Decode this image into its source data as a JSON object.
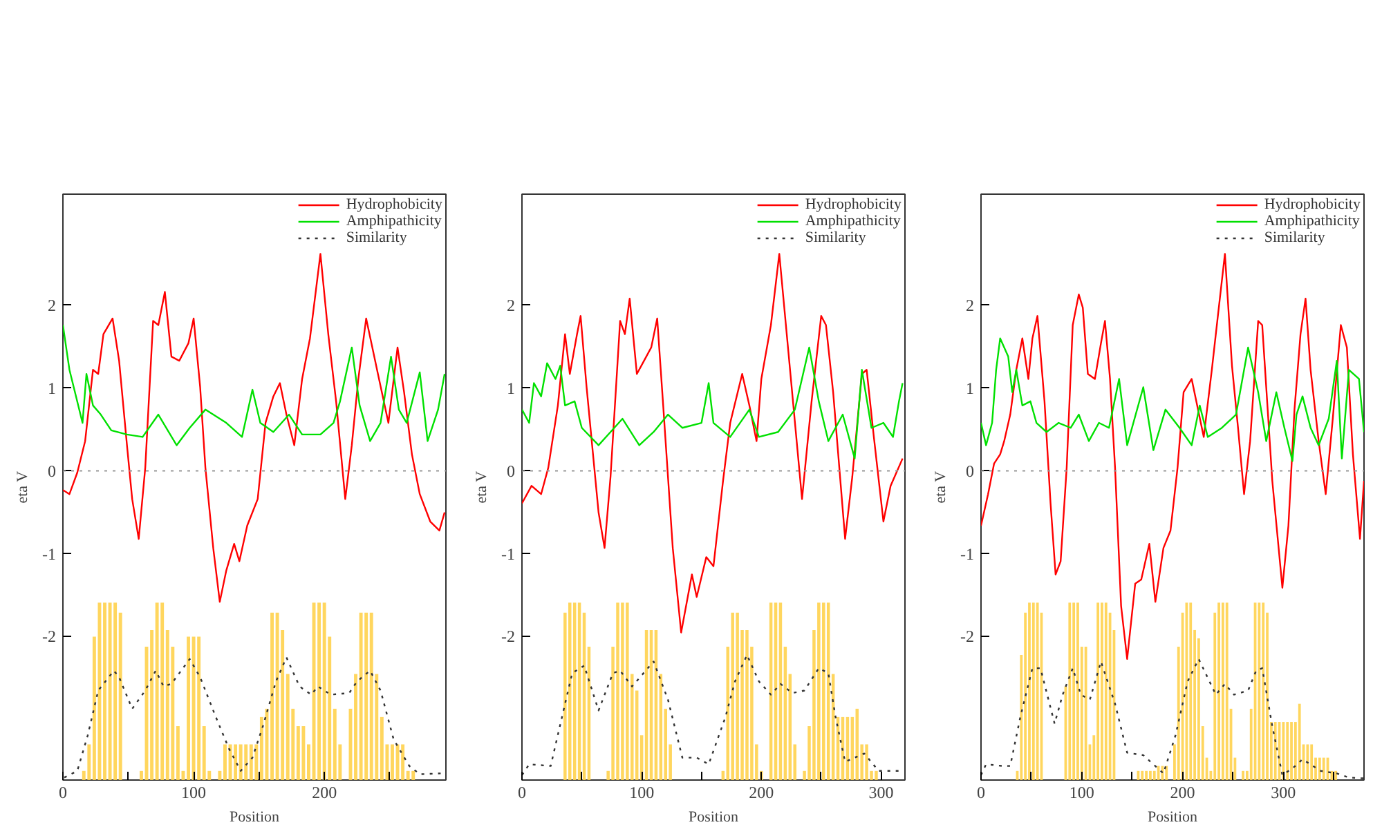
{
  "chart_data": [
    {
      "type": "line",
      "xlabel": "Position",
      "ylabel": "eta V",
      "xlim": [
        0,
        293
      ],
      "ylim": [
        -3.73,
        3.34
      ],
      "xticks": [
        0,
        {
          "value": 50,
          "label": null
        },
        100,
        {
          "value": 150,
          "label": null
        },
        200,
        {
          "value": 250,
          "label": null
        }
      ],
      "yticks": [
        -2,
        -1,
        0,
        1,
        2
      ],
      "legend": "top right",
      "ref_lines": [
        {
          "axis": "y",
          "value": 0,
          "color": "#999999",
          "line_style": "dotted"
        }
      ],
      "series": [
        {
          "type": "bar",
          "color": "#ffd24d",
          "x": [
            16,
            20,
            24,
            28,
            32,
            36,
            40,
            44,
            60,
            64,
            68,
            72,
            76,
            80,
            84,
            88,
            92,
            96,
            100,
            104,
            108,
            112,
            120,
            124,
            128,
            132,
            136,
            140,
            144,
            148,
            152,
            156,
            160,
            164,
            168,
            172,
            176,
            180,
            184,
            188,
            192,
            196,
            200,
            204,
            208,
            212,
            220,
            224,
            228,
            232,
            236,
            240,
            244,
            248,
            252,
            256,
            260,
            264,
            268
          ],
          "values": [
            0.11,
            0.43,
            1.73,
            2.14,
            2.14,
            2.14,
            2.14,
            2.02,
            0.11,
            1.61,
            1.81,
            2.14,
            2.14,
            1.81,
            1.61,
            0.65,
            0.11,
            1.73,
            1.73,
            1.73,
            0.65,
            0.11,
            0.11,
            0.43,
            0.43,
            0.43,
            0.43,
            0.43,
            0.43,
            0.43,
            0.76,
            0.86,
            2.02,
            2.02,
            1.81,
            1.28,
            0.86,
            0.65,
            0.65,
            0.43,
            2.14,
            2.14,
            2.14,
            1.73,
            0.86,
            0.43,
            0.86,
            1.28,
            2.02,
            2.02,
            2.02,
            1.28,
            0.76,
            0.43,
            0.43,
            0.43,
            0.43,
            0.11,
            0.11
          ],
          "base": [
            -3.73,
            -3.73,
            -3.73,
            -3.73,
            -3.73,
            -3.73,
            -3.73,
            -3.73,
            -3.73,
            -3.73,
            -3.73,
            -3.73,
            -3.73,
            -3.73,
            -3.73,
            -3.73,
            -3.73,
            -3.73,
            -3.73,
            -3.73,
            -3.73,
            -3.73,
            -3.73,
            -3.73,
            -3.73,
            -3.73,
            -3.73,
            -3.73,
            -3.73,
            -3.73,
            -3.73,
            -3.73,
            -3.73,
            -3.73,
            -3.73,
            -3.73,
            -3.73,
            -3.73,
            -3.73,
            -3.73,
            -3.73,
            -3.73,
            -3.73,
            -3.73,
            -3.73,
            -3.73,
            -3.73,
            -3.73,
            -3.73,
            -3.73,
            -3.73,
            -3.73,
            -3.73,
            -3.73,
            -3.73,
            -3.73,
            -3.73,
            -3.73,
            -3.73
          ]
        },
        {
          "name": "Hydrophobicity",
          "color": "#ff0000",
          "x": [
            0,
            5,
            11,
            17,
            23,
            27,
            31,
            38,
            43,
            49,
            53,
            58,
            63,
            69,
            73,
            78,
            83,
            89,
            96,
            100,
            105,
            109,
            115,
            120,
            125,
            131,
            135,
            141,
            149,
            155,
            161,
            166,
            171,
            177,
            183,
            189,
            197,
            203,
            209,
            216,
            221,
            226,
            232,
            241,
            249,
            256,
            261,
            267,
            273,
            281,
            288,
            292
          ],
          "values": [
            -0.23,
            -0.28,
            -0.02,
            0.36,
            1.22,
            1.17,
            1.65,
            1.84,
            1.33,
            0.31,
            -0.34,
            -0.82,
            0.04,
            1.81,
            1.76,
            2.16,
            1.38,
            1.33,
            1.54,
            1.84,
            1.01,
            0.04,
            -0.93,
            -1.58,
            -1.2,
            -0.88,
            -1.09,
            -0.66,
            -0.34,
            0.58,
            0.9,
            1.06,
            0.68,
            0.31,
            1.11,
            1.6,
            2.62,
            1.65,
            0.84,
            -0.34,
            0.31,
            1.11,
            1.84,
            1.17,
            0.58,
            1.49,
            0.95,
            0.2,
            -0.28,
            -0.61,
            -0.72,
            -0.5
          ]
        },
        {
          "name": "Amphipathicity",
          "color": "#00e000",
          "x": [
            0,
            5,
            15,
            18,
            23,
            29,
            37,
            49,
            61,
            73,
            87,
            97,
            109,
            125,
            137,
            145,
            151,
            161,
            173,
            183,
            197,
            207,
            212,
            221,
            227,
            235,
            243,
            251,
            257,
            263,
            273,
            279,
            287,
            292
          ],
          "values": [
            1.76,
            1.22,
            0.58,
            1.17,
            0.79,
            0.68,
            0.49,
            0.44,
            0.41,
            0.68,
            0.31,
            0.52,
            0.74,
            0.58,
            0.41,
            0.98,
            0.58,
            0.47,
            0.68,
            0.44,
            0.44,
            0.58,
            0.84,
            1.49,
            0.79,
            0.36,
            0.58,
            1.38,
            0.74,
            0.58,
            1.19,
            0.36,
            0.74,
            1.17
          ]
        },
        {
          "name": "Similarity",
          "color": "#333333",
          "line_style": "dotted",
          "x": [
            1,
            11,
            19,
            27,
            39,
            43,
            53,
            63,
            71,
            77,
            83,
            97,
            105,
            117,
            127,
            136,
            145,
            153,
            163,
            171,
            181,
            190,
            195,
            205,
            219,
            225,
            235,
            243,
            253,
            265,
            273,
            289
          ],
          "values": [
            -3.7,
            -3.62,
            -3.19,
            -2.65,
            -2.41,
            -2.49,
            -2.87,
            -2.65,
            -2.41,
            -2.6,
            -2.57,
            -2.27,
            -2.49,
            -2.97,
            -3.35,
            -3.62,
            -3.46,
            -3.08,
            -2.54,
            -2.25,
            -2.6,
            -2.7,
            -2.6,
            -2.7,
            -2.68,
            -2.54,
            -2.41,
            -2.65,
            -3.24,
            -3.56,
            -3.66,
            -3.65
          ]
        }
      ]
    },
    {
      "type": "line",
      "xlabel": "Position",
      "ylabel": "eta V",
      "xlim": [
        0,
        320
      ],
      "ylim": [
        -3.73,
        3.34
      ],
      "xticks": [
        0,
        {
          "value": 50,
          "label": null
        },
        100,
        {
          "value": 150,
          "label": null
        },
        200,
        {
          "value": 250,
          "label": null
        },
        300
      ],
      "yticks": [
        -2,
        -1,
        0,
        1,
        2
      ],
      "legend": "top right",
      "ref_lines": [
        {
          "axis": "y",
          "value": 0,
          "color": "#999999",
          "line_style": "dotted"
        }
      ],
      "series": [
        {
          "type": "bar",
          "color": "#ffd24d",
          "x": [
            36,
            40,
            44,
            48,
            52,
            56,
            72,
            76,
            80,
            84,
            88,
            92,
            96,
            100,
            104,
            108,
            112,
            116,
            120,
            124,
            168,
            172,
            176,
            180,
            184,
            188,
            192,
            196,
            200,
            208,
            212,
            216,
            220,
            224,
            228,
            236,
            240,
            244,
            248,
            252,
            256,
            260,
            264,
            268,
            272,
            276,
            280,
            284,
            288,
            292,
            296
          ],
          "values": [
            2.02,
            2.14,
            2.14,
            2.14,
            2.02,
            1.61,
            0.11,
            1.61,
            2.14,
            2.14,
            2.14,
            1.28,
            1.08,
            0.54,
            1.81,
            1.81,
            1.81,
            1.28,
            0.86,
            0.43,
            0.11,
            1.61,
            2.02,
            2.02,
            1.81,
            1.81,
            1.61,
            0.43,
            0.11,
            2.14,
            2.14,
            2.14,
            1.61,
            1.28,
            0.43,
            0.11,
            0.65,
            1.81,
            2.14,
            2.14,
            2.14,
            1.28,
            0.76,
            0.76,
            0.76,
            0.76,
            0.86,
            0.43,
            0.43,
            0.11,
            0.11
          ],
          "base": [
            -3.73,
            -3.73,
            -3.73,
            -3.73,
            -3.73,
            -3.73,
            -3.73,
            -3.73,
            -3.73,
            -3.73,
            -3.73,
            -3.73,
            -3.73,
            -3.73,
            -3.73,
            -3.73,
            -3.73,
            -3.73,
            -3.73,
            -3.73,
            -3.73,
            -3.73,
            -3.73,
            -3.73,
            -3.73,
            -3.73,
            -3.73,
            -3.73,
            -3.73,
            -3.73,
            -3.73,
            -3.73,
            -3.73,
            -3.73,
            -3.73,
            -3.73,
            -3.73,
            -3.73,
            -3.73,
            -3.73,
            -3.73,
            -3.73,
            -3.73,
            -3.73,
            -3.73,
            -3.73,
            -3.73,
            -3.73,
            -3.73,
            -3.73,
            -3.73
          ]
        },
        {
          "name": "Hydrophobicity",
          "color": "#ff0000",
          "x": [
            0,
            8,
            16,
            22,
            30,
            36,
            40,
            46,
            49,
            54,
            64,
            69,
            74,
            82,
            86,
            90,
            96,
            102,
            108,
            113,
            118,
            126,
            133,
            142,
            146,
            154,
            160,
            168,
            174,
            184,
            190,
            196,
            200,
            208,
            215,
            224,
            234,
            242,
            250,
            254,
            260,
            270,
            276,
            284,
            288,
            294,
            302,
            308,
            318
          ],
          "values": [
            -0.39,
            -0.18,
            -0.28,
            0.04,
            0.79,
            1.65,
            1.17,
            1.65,
            1.87,
            1.01,
            -0.5,
            -0.93,
            -0.07,
            1.81,
            1.65,
            2.08,
            1.17,
            1.33,
            1.49,
            1.84,
            0.79,
            -0.93,
            -1.95,
            -1.25,
            -1.52,
            -1.04,
            -1.15,
            -0.12,
            0.58,
            1.17,
            0.79,
            0.36,
            1.11,
            1.76,
            2.62,
            1.22,
            -0.34,
            0.84,
            1.87,
            1.76,
            0.95,
            -0.82,
            -0.07,
            1.17,
            1.22,
            0.41,
            -0.61,
            -0.18,
            0.15
          ]
        },
        {
          "name": "Amphipathicity",
          "color": "#00e000",
          "x": [
            0,
            6,
            10,
            16,
            21,
            28,
            32,
            36,
            44,
            50,
            64,
            74,
            84,
            98,
            110,
            122,
            134,
            150,
            156,
            160,
            174,
            190,
            198,
            214,
            228,
            240,
            248,
            256,
            268,
            278,
            284,
            292,
            302,
            310,
            315,
            318
          ],
          "values": [
            0.74,
            0.58,
            1.06,
            0.9,
            1.3,
            1.11,
            1.27,
            0.79,
            0.84,
            0.52,
            0.31,
            0.47,
            0.63,
            0.31,
            0.47,
            0.68,
            0.52,
            0.58,
            1.06,
            0.58,
            0.41,
            0.74,
            0.41,
            0.47,
            0.74,
            1.49,
            0.84,
            0.36,
            0.68,
            0.15,
            1.22,
            0.52,
            0.58,
            0.41,
            0.84,
            1.06
          ]
        },
        {
          "name": "Similarity",
          "color": "#333333",
          "line_style": "dotted",
          "x": [
            0,
            6,
            24,
            36,
            42,
            52,
            64,
            76,
            82,
            92,
            110,
            122,
            134,
            146,
            156,
            170,
            178,
            188,
            198,
            208,
            216,
            226,
            236,
            248,
            256,
            262,
            270,
            286,
            298,
            318
          ],
          "values": [
            -3.67,
            -3.54,
            -3.56,
            -2.81,
            -2.44,
            -2.35,
            -2.89,
            -2.44,
            -2.41,
            -2.6,
            -2.3,
            -2.76,
            -3.46,
            -3.46,
            -3.54,
            -2.97,
            -2.54,
            -2.22,
            -2.54,
            -2.7,
            -2.57,
            -2.68,
            -2.65,
            -2.38,
            -2.44,
            -2.97,
            -3.51,
            -3.41,
            -3.62,
            -3.62
          ]
        }
      ]
    },
    {
      "type": "line",
      "xlabel": "Position",
      "ylabel": "eta V",
      "xlim": [
        0,
        380
      ],
      "ylim": [
        -3.73,
        3.34
      ],
      "xticks": [
        0,
        {
          "value": 50,
          "label": null
        },
        100,
        {
          "value": 150,
          "label": null
        },
        200,
        {
          "value": 250,
          "label": null
        },
        300,
        {
          "value": 350,
          "label": null
        }
      ],
      "yticks": [
        -2,
        -1,
        0,
        1,
        2
      ],
      "legend": "top right",
      "ref_lines": [
        {
          "axis": "y",
          "value": 0,
          "color": "#999999",
          "line_style": "dotted"
        }
      ],
      "series": [
        {
          "type": "bar",
          "color": "#ffd24d",
          "x": [
            36,
            40,
            44,
            48,
            52,
            56,
            60,
            84,
            88,
            92,
            96,
            100,
            104,
            108,
            112,
            116,
            120,
            124,
            128,
            132,
            156,
            160,
            164,
            168,
            172,
            176,
            180,
            184,
            192,
            196,
            200,
            204,
            208,
            212,
            216,
            220,
            224,
            228,
            232,
            236,
            240,
            244,
            248,
            252,
            260,
            264,
            268,
            272,
            276,
            280,
            284,
            288,
            292,
            296,
            300,
            304,
            308,
            312,
            316,
            320,
            324,
            328,
            332,
            336,
            340,
            344,
            348,
            352
          ],
          "values": [
            0.11,
            1.51,
            2.02,
            2.14,
            2.14,
            2.14,
            2.02,
            1.13,
            2.14,
            2.14,
            2.14,
            1.61,
            1.61,
            0.43,
            0.54,
            2.14,
            2.14,
            2.14,
            2.02,
            1.81,
            0.11,
            0.11,
            0.11,
            0.11,
            0.11,
            0.17,
            0.17,
            0.17,
            0.43,
            1.61,
            2.02,
            2.14,
            2.14,
            1.81,
            1.71,
            0.65,
            0.27,
            0.11,
            2.02,
            2.14,
            2.14,
            2.14,
            0.86,
            0.27,
            0.11,
            0.11,
            0.86,
            2.14,
            2.14,
            2.14,
            2.02,
            0.7,
            0.7,
            0.7,
            0.7,
            0.7,
            0.7,
            0.7,
            0.92,
            0.43,
            0.43,
            0.43,
            0.27,
            0.27,
            0.27,
            0.27,
            0.11,
            0.11
          ],
          "base": [
            -3.73,
            -3.73,
            -3.73,
            -3.73,
            -3.73,
            -3.73,
            -3.73,
            -3.73,
            -3.73,
            -3.73,
            -3.73,
            -3.73,
            -3.73,
            -3.73,
            -3.73,
            -3.73,
            -3.73,
            -3.73,
            -3.73,
            -3.73,
            -3.73,
            -3.73,
            -3.73,
            -3.73,
            -3.73,
            -3.73,
            -3.73,
            -3.73,
            -3.73,
            -3.73,
            -3.73,
            -3.73,
            -3.73,
            -3.73,
            -3.73,
            -3.73,
            -3.73,
            -3.73,
            -3.73,
            -3.73,
            -3.73,
            -3.73,
            -3.73,
            -3.73,
            -3.73,
            -3.73,
            -3.73,
            -3.73,
            -3.73,
            -3.73,
            -3.73,
            -3.73,
            -3.73,
            -3.73,
            -3.73,
            -3.73,
            -3.73,
            -3.73,
            -3.73,
            -3.73,
            -3.73,
            -3.73,
            -3.73,
            -3.73,
            -3.73,
            -3.73,
            -3.73,
            -3.73
          ]
        },
        {
          "name": "Hydrophobicity",
          "color": "#ff0000",
          "x": [
            0,
            7,
            13,
            19,
            23,
            29,
            35,
            41,
            47,
            51,
            56,
            63,
            69,
            74,
            79,
            85,
            91,
            97,
            101,
            106,
            113,
            119,
            123,
            128,
            133,
            139,
            145,
            153,
            159,
            167,
            173,
            181,
            188,
            195,
            201,
            209,
            221,
            229,
            235,
            242,
            249,
            255,
            261,
            267,
            275,
            279,
            289,
            299,
            305,
            311,
            317,
            322,
            327,
            335,
            342,
            349,
            357,
            363,
            369,
            376,
            380
          ],
          "values": [
            -0.66,
            -0.28,
            0.09,
            0.2,
            0.36,
            0.68,
            1.22,
            1.6,
            1.11,
            1.6,
            1.87,
            0.84,
            -0.39,
            -1.25,
            -1.09,
            0.04,
            1.76,
            2.13,
            1.97,
            1.17,
            1.11,
            1.54,
            1.81,
            1.11,
            0.04,
            -1.63,
            -2.27,
            -1.36,
            -1.31,
            -0.88,
            -1.58,
            -0.93,
            -0.72,
            0.04,
            0.95,
            1.11,
            0.41,
            1.22,
            1.87,
            2.62,
            1.27,
            0.52,
            -0.28,
            0.36,
            1.81,
            1.76,
            -0.12,
            -1.41,
            -0.66,
            0.74,
            1.65,
            2.08,
            1.22,
            0.36,
            -0.28,
            0.63,
            1.76,
            1.49,
            0.2,
            -0.82,
            -0.12
          ]
        },
        {
          "name": "Amphipathicity",
          "color": "#00e000",
          "x": [
            0,
            5,
            11,
            15,
            19,
            27,
            31,
            35,
            41,
            49,
            55,
            65,
            77,
            89,
            97,
            107,
            117,
            127,
            137,
            145,
            161,
            171,
            183,
            197,
            209,
            217,
            225,
            239,
            253,
            265,
            275,
            283,
            293,
            301,
            309,
            313,
            319,
            327,
            335,
            345,
            353,
            358,
            365,
            375,
            380
          ],
          "values": [
            0.58,
            0.31,
            0.58,
            1.22,
            1.6,
            1.38,
            0.95,
            1.22,
            0.79,
            0.84,
            0.58,
            0.47,
            0.58,
            0.52,
            0.68,
            0.36,
            0.58,
            0.52,
            1.11,
            0.31,
            1.01,
            0.25,
            0.74,
            0.52,
            0.31,
            0.79,
            0.41,
            0.52,
            0.68,
            1.49,
            0.95,
            0.36,
            0.95,
            0.52,
            0.12,
            0.68,
            0.9,
            0.52,
            0.31,
            0.63,
            1.33,
            0.15,
            1.22,
            1.11,
            0.47
          ]
        },
        {
          "name": "Similarity",
          "color": "#333333",
          "line_style": "dotted",
          "x": [
            0,
            5,
            21,
            29,
            39,
            51,
            59,
            73,
            81,
            91,
            99,
            108,
            119,
            133,
            145,
            161,
            171,
            181,
            193,
            205,
            216,
            233,
            242,
            251,
            265,
            273,
            279,
            289,
            299,
            309,
            319,
            337,
            353,
            365,
            380
          ],
          "values": [
            -3.67,
            -3.54,
            -3.56,
            -3.56,
            -2.97,
            -2.38,
            -2.38,
            -3.05,
            -2.7,
            -2.38,
            -2.7,
            -2.76,
            -2.3,
            -2.81,
            -3.4,
            -3.43,
            -3.54,
            -3.65,
            -3.19,
            -2.54,
            -2.27,
            -2.7,
            -2.57,
            -2.7,
            -2.65,
            -2.41,
            -2.38,
            -3.08,
            -3.67,
            -3.59,
            -3.48,
            -3.62,
            -3.65,
            -3.7,
            -3.71
          ]
        }
      ]
    }
  ]
}
